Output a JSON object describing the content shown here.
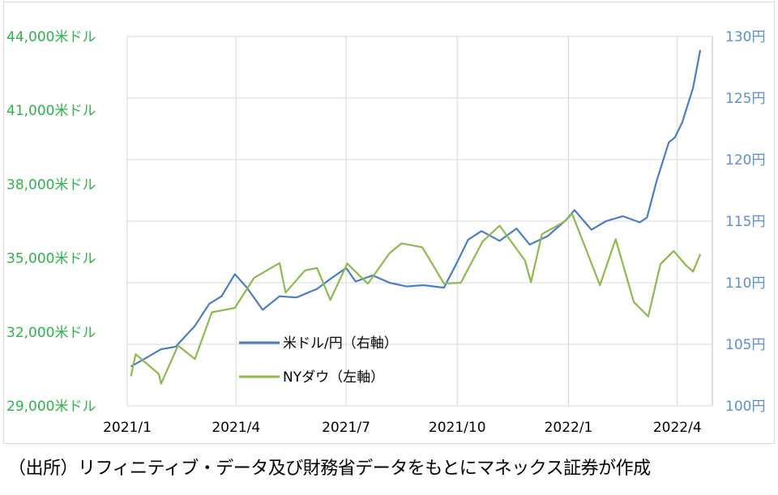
{
  "chart_data": {
    "type": "line",
    "x_axis": {
      "ticks": [
        "2021/1",
        "2021/4",
        "2021/7",
        "2021/10",
        "2022/1",
        "2022/4"
      ]
    },
    "y_left": {
      "unit_label": "米ドル",
      "range": [
        29000,
        44000
      ],
      "ticks": [
        "44,000米ドル",
        "41,000米ドル",
        "38,000米ドル",
        "35,000米ドル",
        "32,000米ドル",
        "29,000米ドル"
      ],
      "tick_values": [
        44000,
        41000,
        38000,
        35000,
        32000,
        29000
      ]
    },
    "y_right": {
      "range": [
        100,
        130
      ],
      "ticks": [
        "130円",
        "125円",
        "120円",
        "115円",
        "110円",
        "105円",
        "100円"
      ],
      "tick_values": [
        130,
        125,
        120,
        115,
        110,
        105,
        100
      ]
    },
    "grid": "vertical and horizontal",
    "legend_position": "bottom-left inside plot",
    "series": [
      {
        "name": "米ドル/円（右軸）",
        "axis": "right",
        "color": "#4a7ec2",
        "points": [
          [
            "2021-01-04",
            103.2
          ],
          [
            "2021-01-15",
            103.8
          ],
          [
            "2021-01-29",
            104.6
          ],
          [
            "2021-02-10",
            104.8
          ],
          [
            "2021-02-26",
            106.5
          ],
          [
            "2021-03-10",
            108.3
          ],
          [
            "2021-03-20",
            108.9
          ],
          [
            "2021-03-31",
            110.7
          ],
          [
            "2021-04-10",
            109.6
          ],
          [
            "2021-04-23",
            107.8
          ],
          [
            "2021-05-07",
            108.9
          ],
          [
            "2021-05-21",
            108.8
          ],
          [
            "2021-06-07",
            109.5
          ],
          [
            "2021-06-18",
            110.3
          ],
          [
            "2021-07-01",
            111.2
          ],
          [
            "2021-07-09",
            110.1
          ],
          [
            "2021-07-23",
            110.6
          ],
          [
            "2021-08-06",
            110.0
          ],
          [
            "2021-08-20",
            109.7
          ],
          [
            "2021-09-03",
            109.8
          ],
          [
            "2021-09-20",
            109.6
          ],
          [
            "2021-09-30",
            111.5
          ],
          [
            "2021-10-10",
            113.5
          ],
          [
            "2021-10-21",
            114.2
          ],
          [
            "2021-11-05",
            113.4
          ],
          [
            "2021-11-19",
            114.4
          ],
          [
            "2021-11-30",
            113.1
          ],
          [
            "2021-12-15",
            113.8
          ],
          [
            "2021-12-30",
            115.1
          ],
          [
            "2022-01-06",
            115.9
          ],
          [
            "2022-01-20",
            114.3
          ],
          [
            "2022-02-01",
            115.0
          ],
          [
            "2022-02-15",
            115.4
          ],
          [
            "2022-03-01",
            114.9
          ],
          [
            "2022-03-07",
            115.3
          ],
          [
            "2022-03-15",
            118.3
          ],
          [
            "2022-03-25",
            121.4
          ],
          [
            "2022-03-30",
            121.8
          ],
          [
            "2022-04-05",
            123.0
          ],
          [
            "2022-04-14",
            125.8
          ],
          [
            "2022-04-20",
            128.9
          ]
        ]
      },
      {
        "name": "NYダウ（左軸）",
        "axis": "left",
        "color": "#8db94f",
        "points": [
          [
            "2021-01-04",
            30200
          ],
          [
            "2021-01-08",
            31100
          ],
          [
            "2021-01-27",
            30300
          ],
          [
            "2021-01-29",
            29900
          ],
          [
            "2021-02-12",
            31450
          ],
          [
            "2021-02-26",
            30900
          ],
          [
            "2021-03-12",
            32800
          ],
          [
            "2021-03-31",
            32980
          ],
          [
            "2021-04-16",
            34200
          ],
          [
            "2021-05-07",
            34800
          ],
          [
            "2021-05-12",
            33600
          ],
          [
            "2021-05-28",
            34500
          ],
          [
            "2021-06-07",
            34600
          ],
          [
            "2021-06-18",
            33300
          ],
          [
            "2021-07-02",
            34780
          ],
          [
            "2021-07-19",
            33960
          ],
          [
            "2021-08-06",
            35200
          ],
          [
            "2021-08-16",
            35600
          ],
          [
            "2021-09-02",
            35440
          ],
          [
            "2021-09-20",
            33970
          ],
          [
            "2021-10-04",
            34000
          ],
          [
            "2021-10-22",
            35680
          ],
          [
            "2021-11-05",
            36320
          ],
          [
            "2021-11-26",
            34900
          ],
          [
            "2021-12-01",
            34020
          ],
          [
            "2021-12-10",
            35970
          ],
          [
            "2021-12-29",
            36490
          ],
          [
            "2022-01-04",
            36800
          ],
          [
            "2022-01-27",
            33900
          ],
          [
            "2022-02-09",
            35770
          ],
          [
            "2022-02-24",
            33220
          ],
          [
            "2022-03-08",
            32630
          ],
          [
            "2022-03-18",
            34750
          ],
          [
            "2022-03-29",
            35290
          ],
          [
            "2022-04-08",
            34720
          ],
          [
            "2022-04-14",
            34450
          ],
          [
            "2022-04-20",
            35160
          ]
        ]
      }
    ]
  },
  "source_note": "（出所）リフィニティブ・データ及び財務省データをもとにマネックス証券が作成"
}
